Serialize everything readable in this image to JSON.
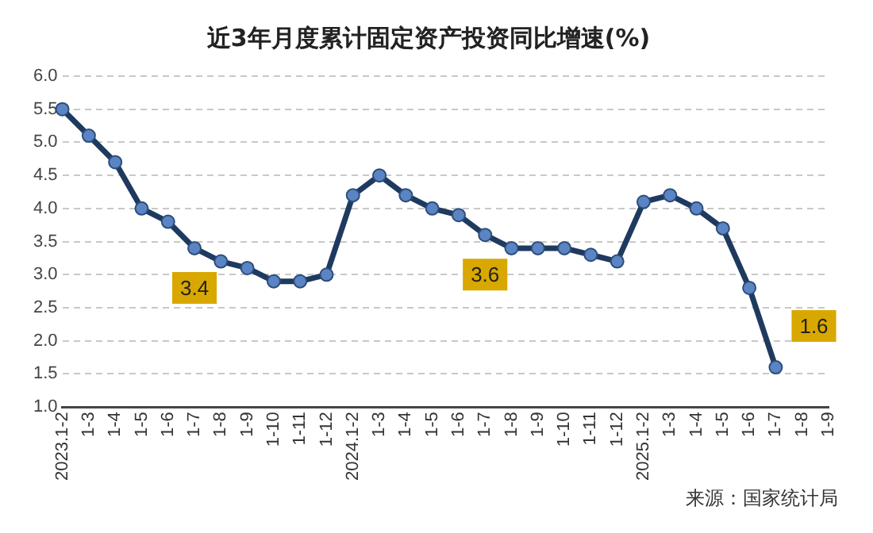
{
  "chart_data": {
    "type": "line",
    "title": "近3年月度累计固定资产投资同比增速(%)",
    "categories": [
      "2023.1-2",
      "1-3",
      "1-4",
      "1-5",
      "1-6",
      "1-7",
      "1-8",
      "1-9",
      "1-10",
      "1-11",
      "1-12",
      "2024.1-2",
      "1-3",
      "1-4",
      "1-5",
      "1-6",
      "1-7",
      "1-8",
      "1-9",
      "1-10",
      "1-11",
      "1-12",
      "2025.1-2",
      "1-3",
      "1-4",
      "1-5",
      "1-6",
      "1-7",
      "1-8",
      "1-9"
    ],
    "series": [
      {
        "color": "#1f3a5f",
        "values": [
          5.5,
          5.1,
          4.7,
          4.0,
          3.8,
          3.4,
          3.2,
          3.1,
          2.9,
          2.9,
          3.0,
          4.2,
          4.5,
          4.2,
          4.0,
          3.9,
          3.6,
          3.4,
          3.4,
          3.4,
          3.3,
          3.2,
          4.1,
          4.2,
          4.0,
          3.7,
          2.8,
          1.6,
          null,
          null
        ],
        "value_labels": [
          null,
          null,
          null,
          null,
          null,
          "3.4",
          null,
          null,
          null,
          null,
          null,
          null,
          null,
          null,
          null,
          null,
          "3.6",
          null,
          null,
          null,
          null,
          null,
          null,
          null,
          null,
          null,
          null,
          "1.6",
          null,
          null
        ]
      }
    ],
    "ylim": [
      1.0,
      6.0
    ],
    "yticks": [
      {
        "value": 1.0,
        "label": "1.0"
      },
      {
        "value": 1.5,
        "label": "1.5"
      },
      {
        "value": 2.0,
        "label": "2.0"
      },
      {
        "value": 2.5,
        "label": "2.5"
      },
      {
        "value": 3.0,
        "label": "3.0"
      },
      {
        "value": 3.5,
        "label": "3.5"
      },
      {
        "value": 4.0,
        "label": "4.0"
      },
      {
        "value": 4.5,
        "label": "4.5"
      },
      {
        "value": 5.0,
        "label": "5.0"
      },
      {
        "value": 5.5,
        "label": "5.5"
      },
      {
        "value": 6.0,
        "label": "6.0"
      }
    ],
    "grid": "y",
    "legend": false,
    "marker": "circle",
    "line_style": "solid",
    "annotations": [
      "来源：国家统计局"
    ]
  }
}
